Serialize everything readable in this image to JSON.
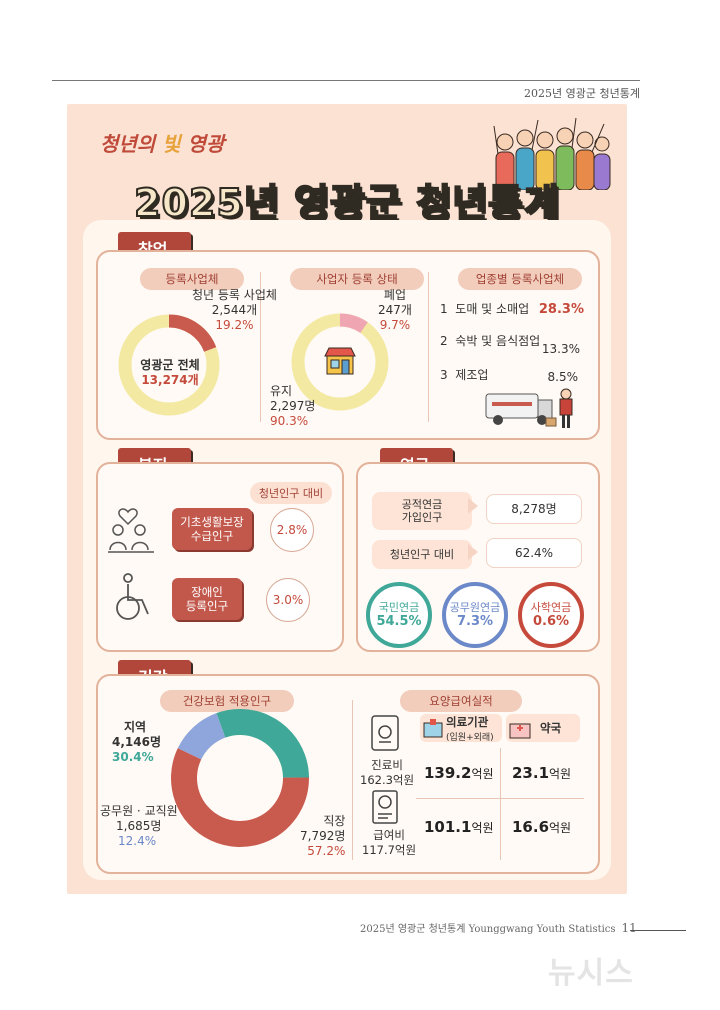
{
  "page_header": "2025년 영광군 청년통계",
  "logo": {
    "part1": "청년의 ",
    "part2": "빛",
    "part3": " 영광"
  },
  "title": "2025년 영광군 청년통계",
  "startup": {
    "label": "창업",
    "registered": {
      "pill": "등록사업체",
      "youth_label": "청년 등록 사업체",
      "youth_count": "2,544개",
      "youth_pct": "19.2%",
      "total_label": "영광군 전체",
      "total_count": "13,274개",
      "youth_share": 19.2
    },
    "status": {
      "pill": "사업자 등록 상태",
      "closed_label": "폐업",
      "closed_count": "247개",
      "closed_pct": "9.7%",
      "active_label": "유지",
      "active_count": "2,297명",
      "active_pct": "90.3%",
      "closed_share": 9.7
    },
    "industry": {
      "pill": "업종별 등록사업체",
      "items": [
        {
          "no": "1",
          "name": "도매 및 소매업",
          "pct": "28.3%"
        },
        {
          "no": "2",
          "name": "숙박 및 음식점업",
          "pct": "13.3%"
        },
        {
          "no": "3",
          "name": "제조업",
          "pct": "8.5%"
        }
      ]
    }
  },
  "welfare": {
    "label": "복지",
    "pill": "청년인구 대비",
    "items": [
      {
        "name": "기초생활보장\n수급인구",
        "pct": "2.8%"
      },
      {
        "name": "장애인\n등록인구",
        "pct": "3.0%"
      }
    ]
  },
  "pension": {
    "label": "연금",
    "rows": [
      {
        "name": "공적연금\n가입인구",
        "value": "8,278명"
      },
      {
        "name": "청년인구 대비",
        "value": "62.4%"
      }
    ],
    "circles": [
      {
        "name": "국민연금",
        "pct": "54.5%",
        "color": "#3fa898"
      },
      {
        "name": "공무원연금",
        "pct": "7.3%",
        "color": "#6b88c8"
      },
      {
        "name": "사학연금",
        "pct": "0.6%",
        "color": "#c54a3c"
      }
    ]
  },
  "health": {
    "label": "건강",
    "insurance": {
      "pill": "건강보험 적용인구",
      "regional_label": "지역",
      "regional_count": "4,146명",
      "regional_pct": "30.4%",
      "official_label": "공무원 · 교직원",
      "official_count": "1,685명",
      "official_pct": "12.4%",
      "workplace_label": "직장",
      "workplace_count": "7,792명",
      "workplace_pct": "57.2%",
      "shares": {
        "regional": 30.4,
        "official": 12.4,
        "workplace": 57.2
      },
      "colors": {
        "regional": "#3fa898",
        "official": "#8ea6dc",
        "workplace": "#c85a4e"
      }
    },
    "benefits": {
      "pill": "요양급여실적",
      "col_medical": "의료기관",
      "col_medical_sub": "(입원+외래)",
      "col_pharmacy": "약국",
      "treatment_label": "진료비",
      "treatment_total": "162.3억원",
      "treatment_medical": "139.2",
      "treatment_pharmacy": "23.1",
      "benefit_label": "급여비",
      "benefit_total": "117.7억원",
      "benefit_medical": "101.1",
      "benefit_pharmacy": "16.6",
      "unit": "억원"
    }
  },
  "footer": {
    "text": "2025년 영광군 청년통계 Younggwang Youth Statistics",
    "page": "11"
  },
  "watermark": "뉴시스"
}
